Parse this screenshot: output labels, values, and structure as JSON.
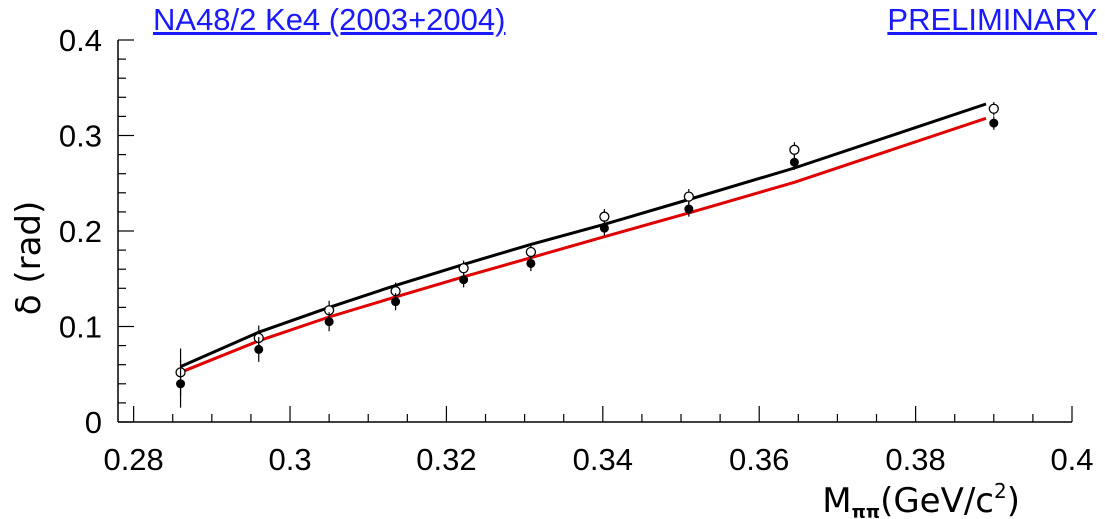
{
  "header": {
    "left_title": "NA48/2 Ke4 (2003+2004)",
    "right_title": "PRELIMINARY"
  },
  "colors": {
    "header_text": "#1a1aff",
    "curve_black": "#000000",
    "curve_red": "#e00000"
  },
  "chart_data": {
    "type": "scatter",
    "xlabel": "M_ππ(GeV/c²)",
    "xlabel_parts": {
      "main": "M",
      "sub": "ππ",
      "unit_open": "(GeV/c",
      "sup": "2",
      "unit_close": ")"
    },
    "ylabel": "δ (rad)",
    "xlim": [
      0.278,
      0.4
    ],
    "ylim": [
      0,
      0.4
    ],
    "x_ticks": [
      "0.28",
      "0.3",
      "0.32",
      "0.34",
      "0.36",
      "0.38",
      "0.4"
    ],
    "x_tick_values": [
      0.28,
      0.3,
      0.32,
      0.34,
      0.36,
      0.38,
      0.4
    ],
    "y_ticks": [
      "0",
      "0.1",
      "0.2",
      "0.3",
      "0.4"
    ],
    "y_tick_values": [
      0,
      0.1,
      0.2,
      0.3,
      0.4
    ],
    "grid": false,
    "series": [
      {
        "marker": "open-circle",
        "points": [
          {
            "x": 0.286,
            "y": 0.052,
            "err": 0.025
          },
          {
            "x": 0.296,
            "y": 0.088,
            "err": 0.013
          },
          {
            "x": 0.305,
            "y": 0.117,
            "err": 0.01
          },
          {
            "x": 0.3135,
            "y": 0.137,
            "err": 0.009
          },
          {
            "x": 0.3222,
            "y": 0.161,
            "err": 0.008
          },
          {
            "x": 0.3308,
            "y": 0.178,
            "err": 0.008
          },
          {
            "x": 0.3402,
            "y": 0.215,
            "err": 0.008
          },
          {
            "x": 0.351,
            "y": 0.236,
            "err": 0.008
          },
          {
            "x": 0.3645,
            "y": 0.285,
            "err": 0.008
          },
          {
            "x": 0.39,
            "y": 0.328,
            "err": 0.007
          }
        ]
      },
      {
        "marker": "filled-circle",
        "points": [
          {
            "x": 0.286,
            "y": 0.04,
            "err": 0.025
          },
          {
            "x": 0.296,
            "y": 0.076,
            "err": 0.013
          },
          {
            "x": 0.305,
            "y": 0.105,
            "err": 0.01
          },
          {
            "x": 0.3135,
            "y": 0.126,
            "err": 0.009
          },
          {
            "x": 0.3222,
            "y": 0.149,
            "err": 0.008
          },
          {
            "x": 0.3308,
            "y": 0.166,
            "err": 0.008
          },
          {
            "x": 0.3402,
            "y": 0.203,
            "err": 0.008
          },
          {
            "x": 0.351,
            "y": 0.223,
            "err": 0.008
          },
          {
            "x": 0.3645,
            "y": 0.272,
            "err": 0.008
          },
          {
            "x": 0.39,
            "y": 0.313,
            "err": 0.007
          }
        ]
      },
      {
        "marker": "line",
        "color": "#000000",
        "points": [
          {
            "x": 0.286,
            "y": 0.058
          },
          {
            "x": 0.296,
            "y": 0.094
          },
          {
            "x": 0.305,
            "y": 0.12
          },
          {
            "x": 0.3135,
            "y": 0.143
          },
          {
            "x": 0.3222,
            "y": 0.165
          },
          {
            "x": 0.3308,
            "y": 0.186
          },
          {
            "x": 0.3402,
            "y": 0.207
          },
          {
            "x": 0.351,
            "y": 0.233
          },
          {
            "x": 0.3645,
            "y": 0.266
          },
          {
            "x": 0.389,
            "y": 0.333
          }
        ]
      },
      {
        "marker": "line",
        "color": "#e00000",
        "points": [
          {
            "x": 0.286,
            "y": 0.052
          },
          {
            "x": 0.296,
            "y": 0.085
          },
          {
            "x": 0.305,
            "y": 0.11
          },
          {
            "x": 0.3135,
            "y": 0.131
          },
          {
            "x": 0.3222,
            "y": 0.152
          },
          {
            "x": 0.3308,
            "y": 0.172
          },
          {
            "x": 0.3402,
            "y": 0.194
          },
          {
            "x": 0.351,
            "y": 0.219
          },
          {
            "x": 0.3645,
            "y": 0.251
          },
          {
            "x": 0.389,
            "y": 0.318
          }
        ]
      }
    ]
  }
}
